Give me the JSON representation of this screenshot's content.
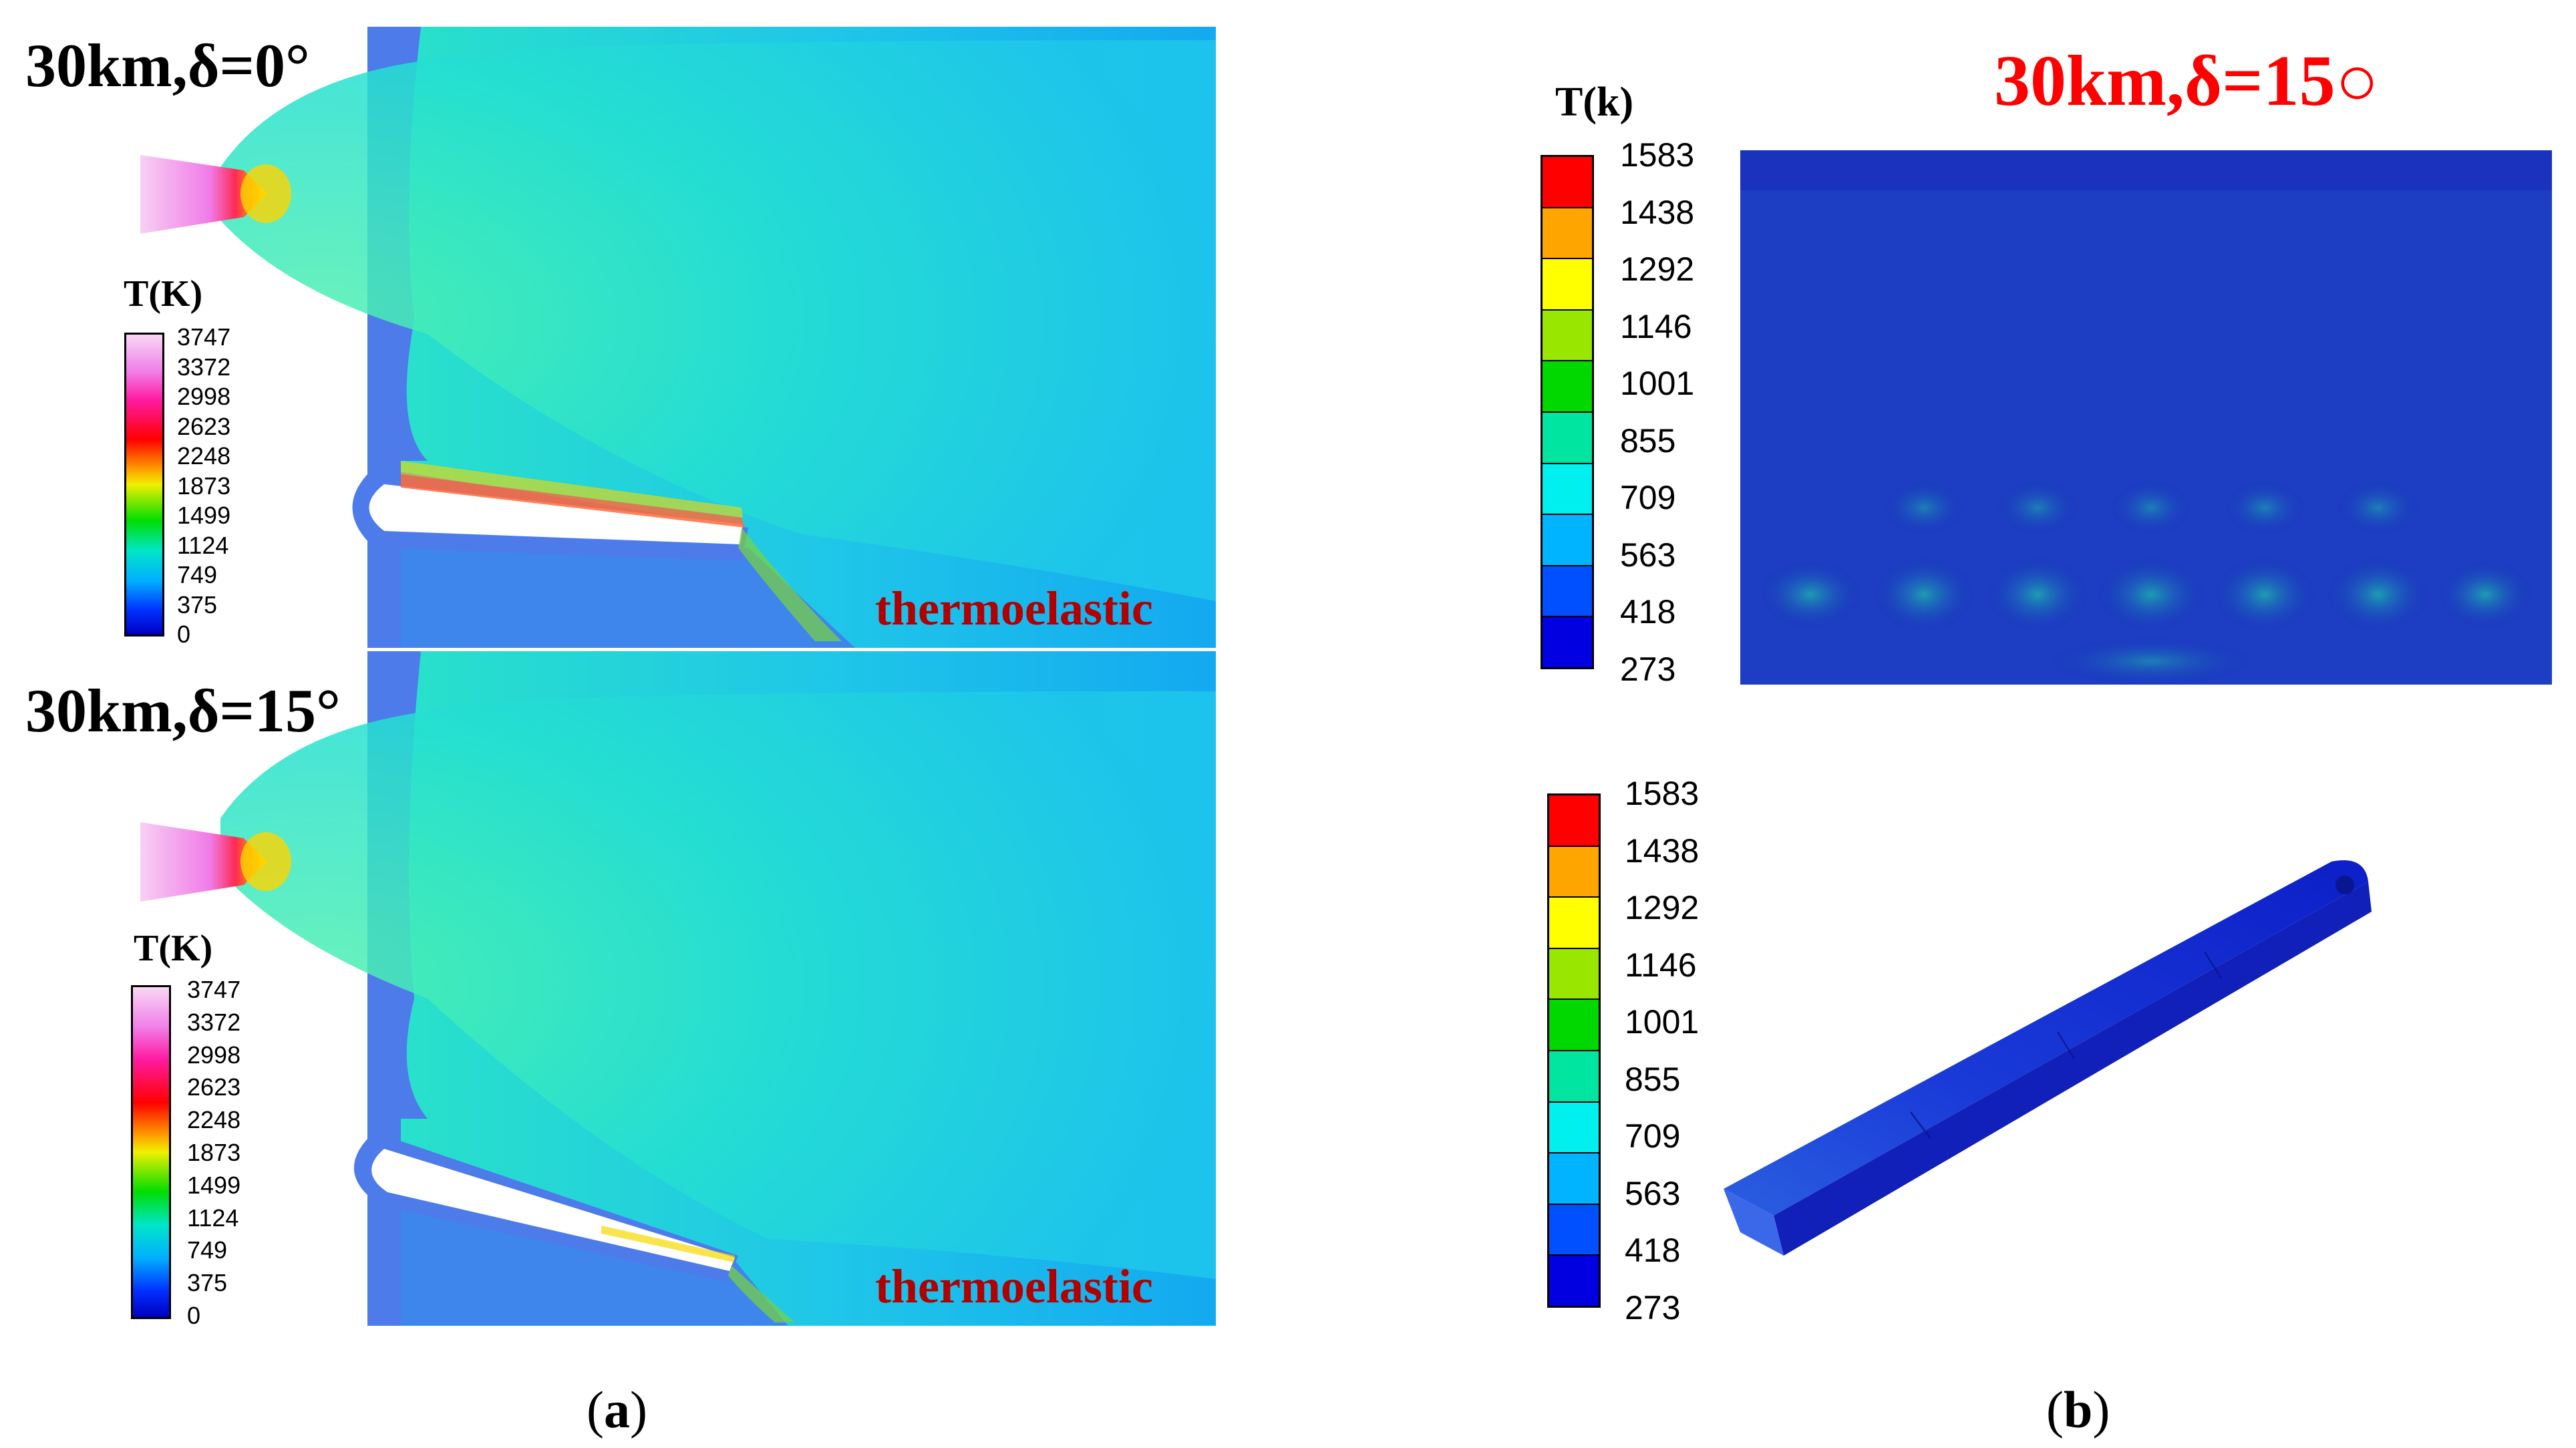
{
  "panel_a": {
    "label_paren_open": "(",
    "label_letter": "a",
    "label_paren_close": ")",
    "top": {
      "case_label": "30km,δ=0°",
      "model": "thermoelastic",
      "unit": "T(K)"
    },
    "bottom": {
      "case_label": "30km,δ=15°",
      "model": "thermoelastic",
      "unit": "T(K)"
    },
    "colorbar_ticks": [
      "3747",
      "3372",
      "2998",
      "2623",
      "2248",
      "1873",
      "1499",
      "1124",
      "749",
      "375",
      "0"
    ]
  },
  "panel_b": {
    "label_paren_open": "(",
    "label_letter": "b",
    "label_paren_close": ")",
    "title": "30km,δ=15○",
    "unit": "T(k)",
    "colorbar_ticks": [
      "1583",
      "1438",
      "1292",
      "1146",
      "1001",
      "855",
      "709",
      "563",
      "418",
      "273"
    ],
    "colorbar_colors": [
      "#ff0000",
      "#ffa500",
      "#ffff00",
      "#99e600",
      "#00d800",
      "#00e6a0",
      "#00f0f0",
      "#00b4ff",
      "#0050ff",
      "#0000e0"
    ]
  }
}
